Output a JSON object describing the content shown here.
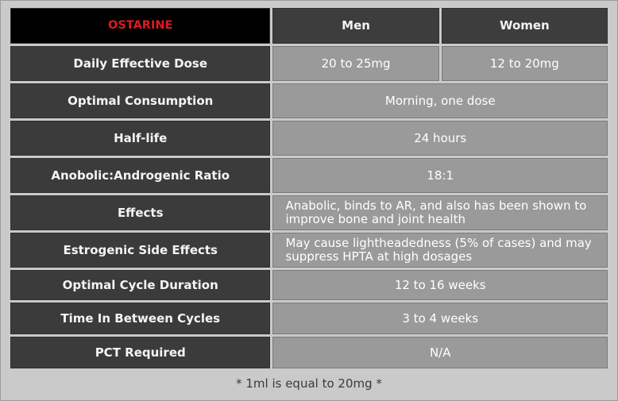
{
  "header": {
    "title": "OSTARINE",
    "col_men": "Men",
    "col_women": "Women"
  },
  "rows": [
    {
      "label": "Daily Effective Dose",
      "men": "20 to 25mg",
      "women": "12 to 20mg"
    },
    {
      "label": "Optimal Consumption",
      "value": "Morning, one dose"
    },
    {
      "label": "Half-life",
      "value": "24 hours"
    },
    {
      "label": "Anobolic:Androgenic Ratio",
      "value": "18:1"
    },
    {
      "label": "Effects",
      "value": "Anabolic, binds to AR, and also has been shown to improve bone and joint health"
    },
    {
      "label": "Estrogenic Side Effects",
      "value": "May cause lightheadedness (5% of cases) and may suppress HPTA at high dosages"
    },
    {
      "label": "Optimal Cycle Duration",
      "value": "12 to 16 weeks"
    },
    {
      "label": "Time In Between Cycles",
      "value": "3 to 4 weeks"
    },
    {
      "label": "PCT Required",
      "value": "N/A"
    }
  ],
  "footnote": "* 1ml is equal to 20mg *"
}
